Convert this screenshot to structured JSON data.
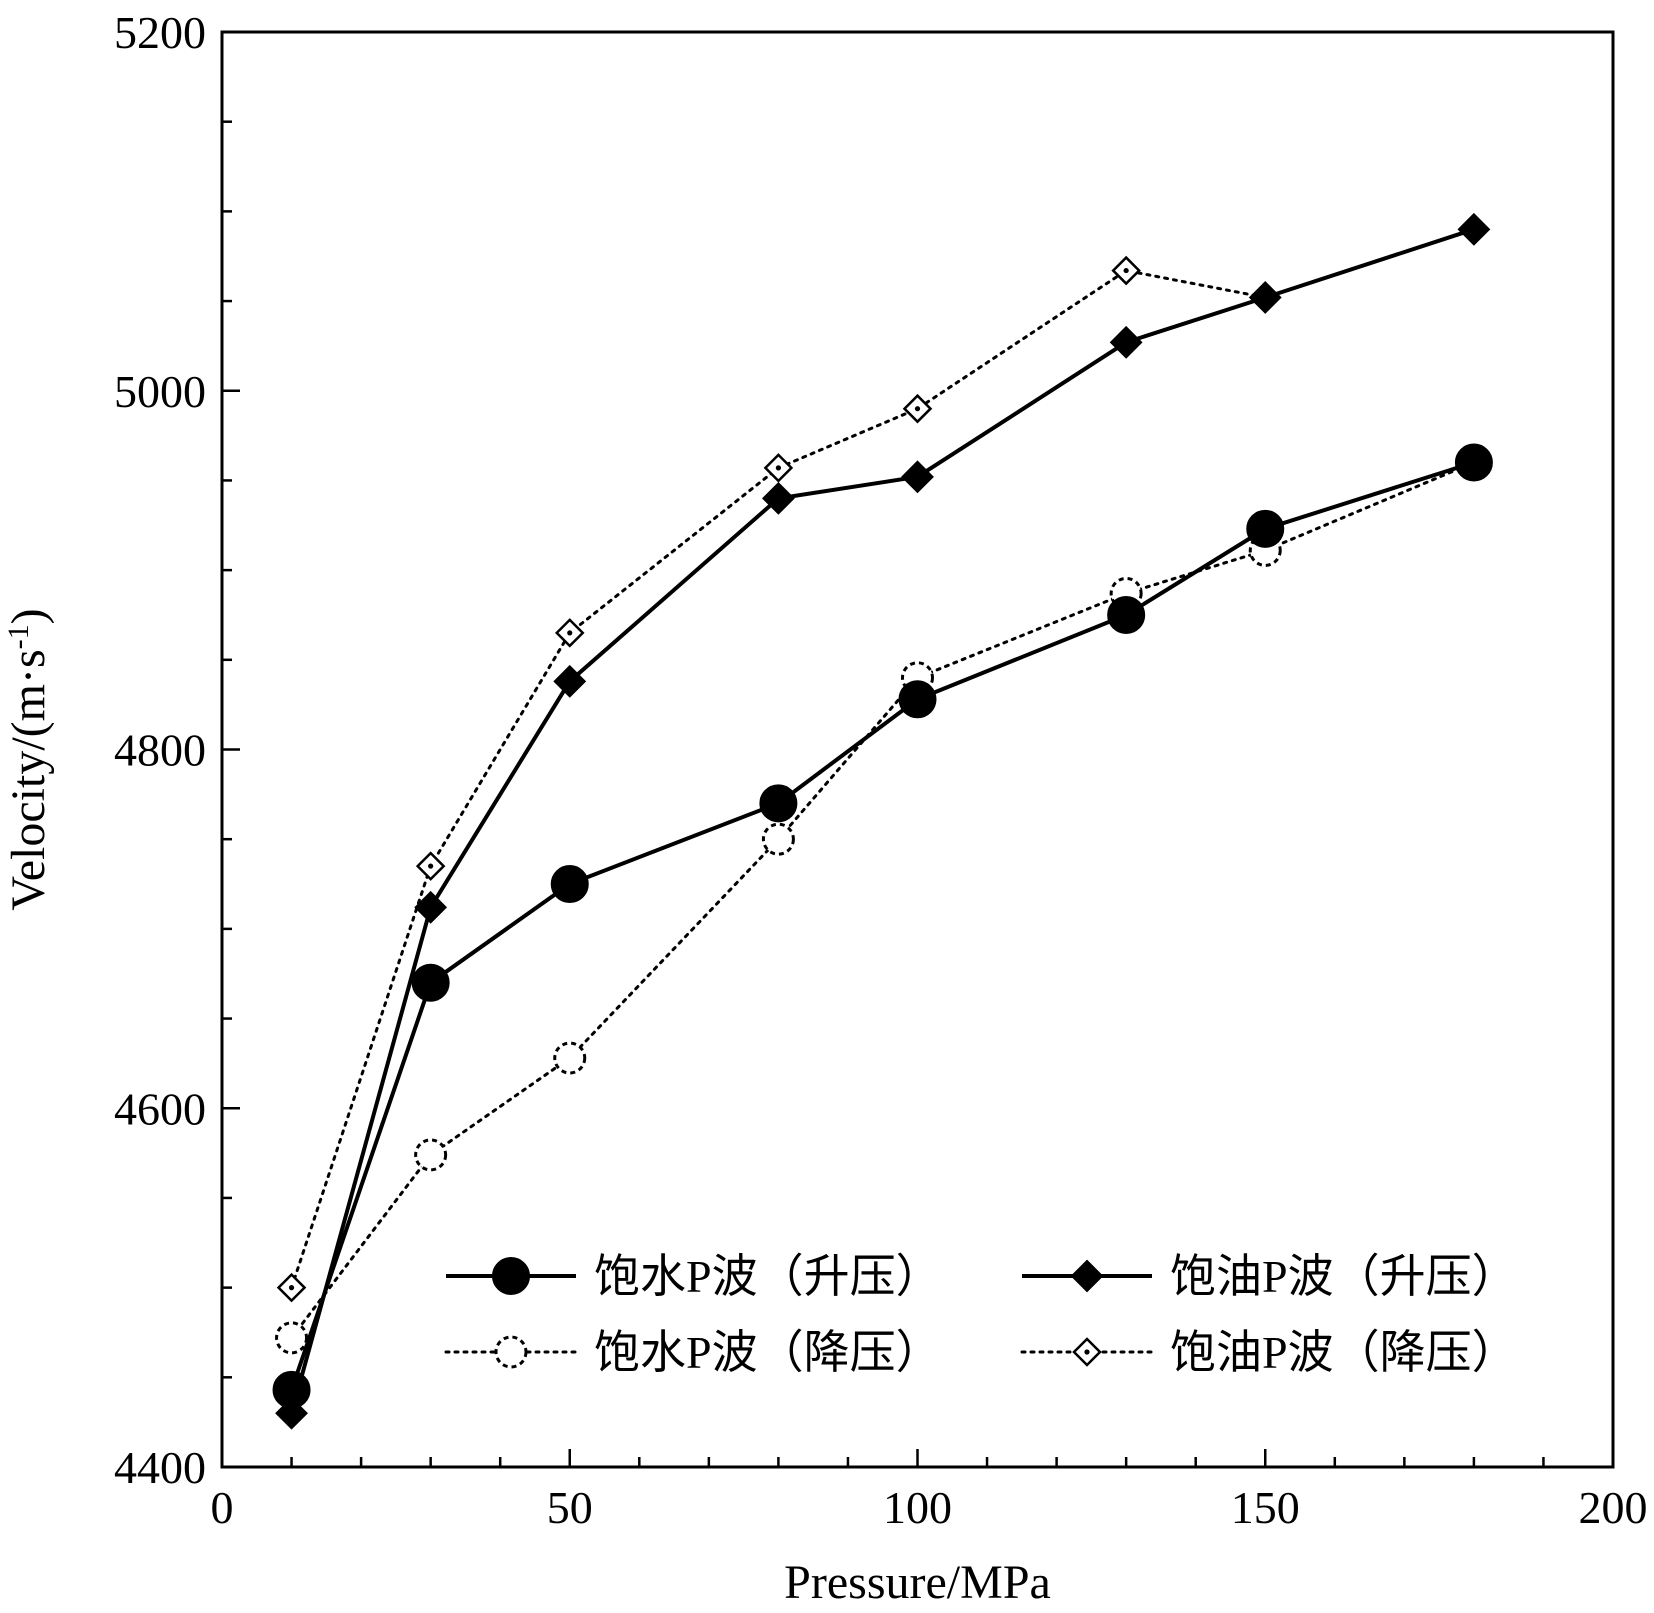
{
  "chart_data": {
    "type": "line",
    "title": "",
    "xlabel": "Pressure/MPa",
    "ylabel_main": "Velocity/(m·s",
    "ylabel_sup": "-1",
    "ylabel_end": ")",
    "xlim": [
      0,
      200
    ],
    "ylim": [
      4400,
      5200
    ],
    "x_major_ticks": [
      0,
      50,
      100,
      150,
      200
    ],
    "x_minor_step": 10,
    "y_major_ticks": [
      4400,
      4600,
      4800,
      5000,
      5200
    ],
    "y_minor_step": 50,
    "grid": false,
    "legend_position": "bottom-right",
    "series": [
      {
        "name": "饱水P波（升压）",
        "line": "solid",
        "marker": "filled-circle",
        "x": [
          10,
          30,
          50,
          80,
          100,
          130,
          150,
          180
        ],
        "y": [
          4443,
          4670,
          4725,
          4770,
          4828,
          4875,
          4923,
          4960
        ]
      },
      {
        "name": "饱油P波（升压）",
        "line": "solid",
        "marker": "filled-diamond",
        "x": [
          10,
          30,
          50,
          80,
          100,
          130,
          150,
          180
        ],
        "y": [
          4430,
          4712,
          4838,
          4940,
          4952,
          5027,
          5052,
          5090
        ]
      },
      {
        "name": "饱水P波（降压）",
        "line": "dotted",
        "marker": "open-circle",
        "x": [
          10,
          30,
          50,
          80,
          100,
          130,
          150,
          180
        ],
        "y": [
          4472,
          4574,
          4628,
          4750,
          4840,
          4887,
          4911,
          4960
        ]
      },
      {
        "name": "饱油P波（降压）",
        "line": "dotted",
        "marker": "open-diamond",
        "x": [
          10,
          30,
          50,
          80,
          100,
          130,
          150
        ],
        "y": [
          4500,
          4735,
          4865,
          4957,
          4990,
          5067,
          5052
        ]
      }
    ]
  }
}
